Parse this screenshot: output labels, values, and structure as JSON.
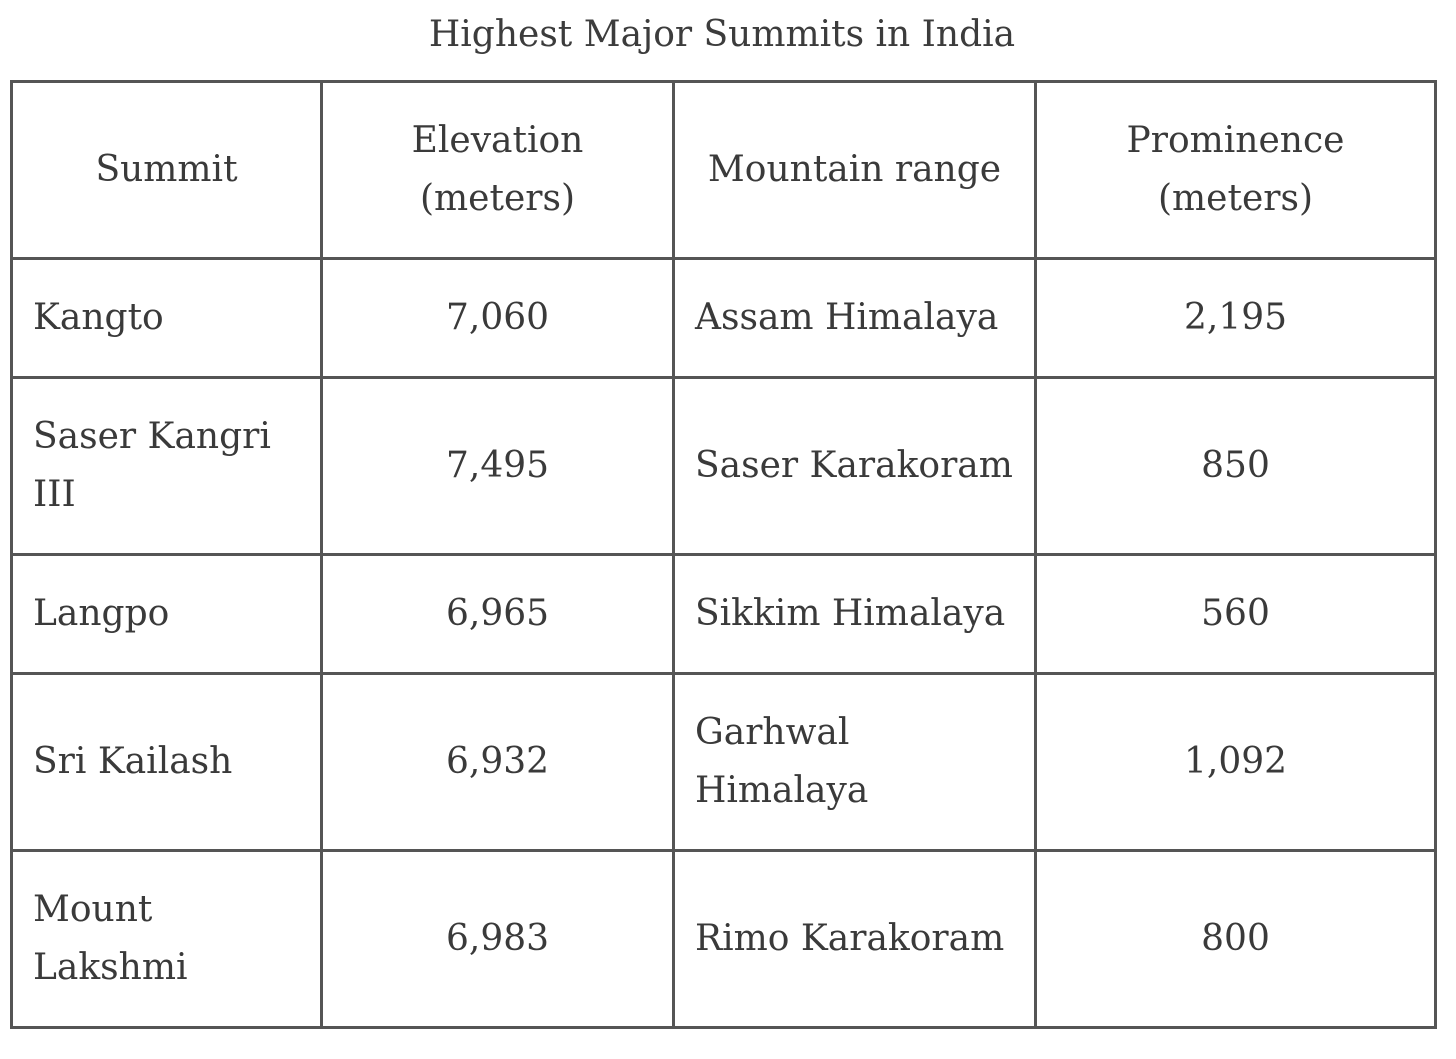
{
  "table": {
    "caption": "Highest Major Summits in India",
    "headers": {
      "summit": "Summit",
      "elevation": "Elevation (meters)",
      "range": "Mountain range",
      "prominence": "Prominence (meters)"
    },
    "rows": [
      {
        "summit": "Kangto",
        "elevation": "7,060",
        "range": "Assam Himalaya",
        "prominence": "2,195"
      },
      {
        "summit": "Saser Kangri III",
        "elevation": "7,495",
        "range": "Saser Karakoram",
        "prominence": "850"
      },
      {
        "summit": "Langpo",
        "elevation": "6,965",
        "range": "Sikkim Himalaya",
        "prominence": "560"
      },
      {
        "summit": "Sri Kailash",
        "elevation": "6,932",
        "range": "Garhwal Himalaya",
        "prominence": "1,092"
      },
      {
        "summit": "Mount Lakshmi",
        "elevation": "6,983",
        "range": "Rimo Karakoram",
        "prominence": "800"
      }
    ]
  }
}
